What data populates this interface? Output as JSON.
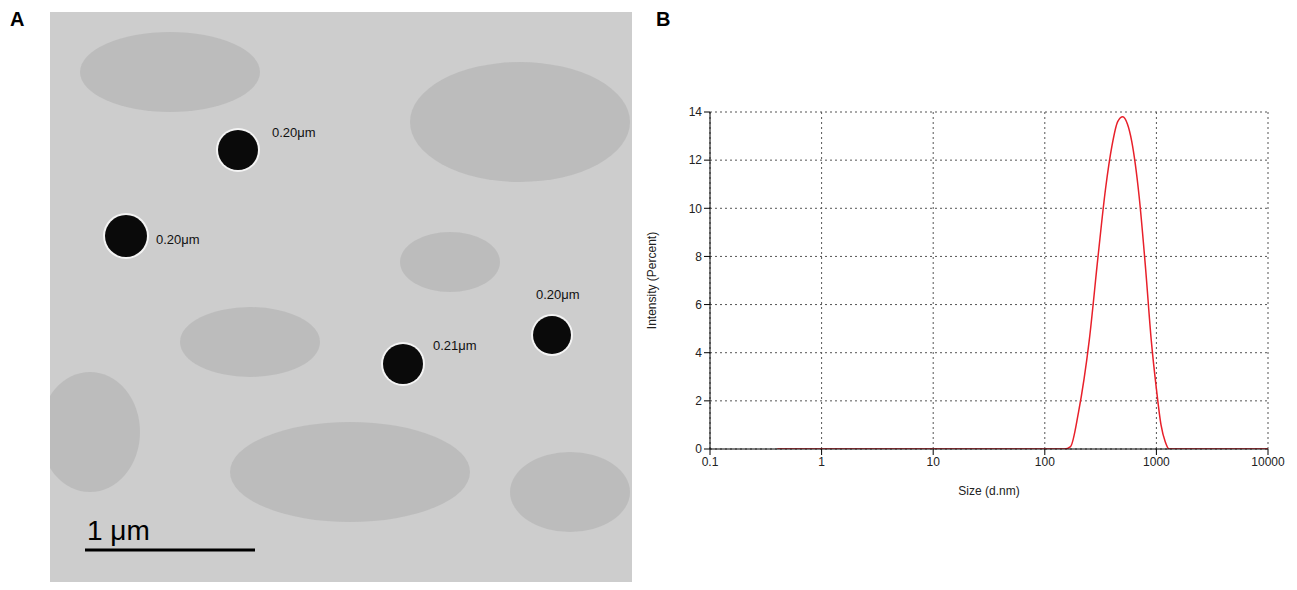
{
  "panel_letters": [
    "A",
    "B"
  ],
  "image_panel": {
    "particle_labels": [
      "0.20μm",
      "0.20μm",
      "0.21μm",
      "0.20μm"
    ],
    "scale_bar": "1 μm"
  },
  "chart_data": {
    "type": "line",
    "x_label": "Size (d.nm)",
    "y_label": "Intensity (Percent)",
    "log": "x",
    "grid": true,
    "color": "#e8202a",
    "xlim": [
      0.1,
      10000
    ],
    "xticks": [
      0.1,
      1,
      10,
      100,
      1000,
      10000
    ],
    "ylim": [
      0,
      14
    ],
    "yticks": [
      0,
      2,
      4,
      6,
      8,
      10,
      12,
      14
    ],
    "x": [
      0.4,
      1,
      10,
      100,
      150,
      170,
      200,
      250,
      300,
      350,
      400,
      450,
      500,
      550,
      600,
      700,
      800,
      900,
      1000,
      1100,
      1200,
      1300,
      2000,
      5000,
      10000
    ],
    "values": [
      0,
      0,
      0,
      0,
      0,
      0.1,
      1.5,
      4.5,
      8,
      10.8,
      12.6,
      13.6,
      13.8,
      13.5,
      12.8,
      10.5,
      7.5,
      4.5,
      2.5,
      1,
      0.3,
      0,
      0,
      0,
      0
    ]
  }
}
